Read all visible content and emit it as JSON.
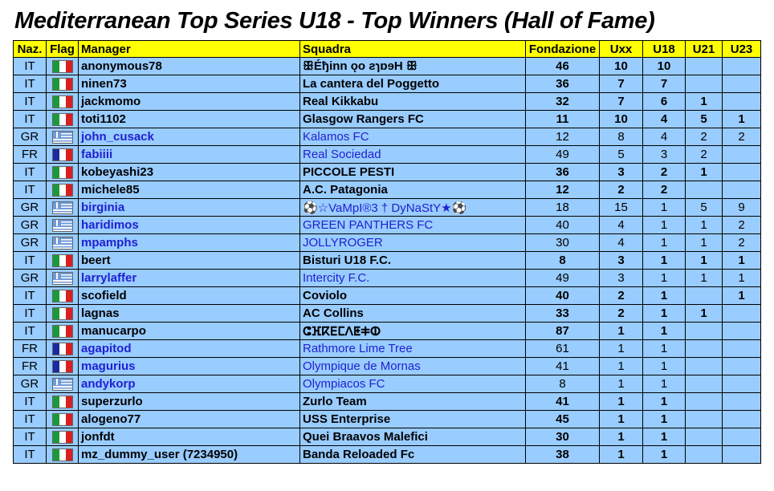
{
  "title": "Mediterranean Top Series U18 - Top Winners (Hall of Fame)",
  "headers": [
    "Naz.",
    "Flag",
    "Manager",
    "Squadra",
    "Fondazione",
    "Uxx",
    "U18",
    "U21",
    "U23"
  ],
  "rows": [
    {
      "naz": "IT",
      "flag": "flag-italy-icon",
      "manager": "anonymous78",
      "squadra": "ꕥÉђinn ǫo ƨɿɒɘH ꕥ",
      "fondazione": "46",
      "uxx": "10",
      "u18": "10",
      "u21": "",
      "u23": ""
    },
    {
      "naz": "IT",
      "flag": "flag-italy-icon",
      "manager": "ninen73",
      "squadra": "La cantera del Poggetto",
      "fondazione": "36",
      "uxx": "7",
      "u18": "7",
      "u21": "",
      "u23": ""
    },
    {
      "naz": "IT",
      "flag": "flag-italy-icon",
      "manager": "jackmomo",
      "squadra": "Real Kikkabu",
      "fondazione": "32",
      "uxx": "7",
      "u18": "6",
      "u21": "1",
      "u23": ""
    },
    {
      "naz": "IT",
      "flag": "flag-italy-icon",
      "manager": "toti1102",
      "squadra": "Glasgow Rangers FC",
      "fondazione": "11",
      "uxx": "10",
      "u18": "4",
      "u21": "5",
      "u23": "1"
    },
    {
      "naz": "GR",
      "flag": "flag-greece-icon",
      "manager": "john_cusack",
      "squadra": "Kalamos FC",
      "fondazione": "12",
      "uxx": "8",
      "u18": "4",
      "u21": "2",
      "u23": "2"
    },
    {
      "naz": "FR",
      "flag": "flag-france-icon",
      "manager": "fabiiii",
      "squadra": "Real Sociedad",
      "fondazione": "49",
      "uxx": "5",
      "u18": "3",
      "u21": "2",
      "u23": ""
    },
    {
      "naz": "IT",
      "flag": "flag-italy-icon",
      "manager": "kobeyashi23",
      "squadra": "PICCOLE PESTI",
      "fondazione": "36",
      "uxx": "3",
      "u18": "2",
      "u21": "1",
      "u23": ""
    },
    {
      "naz": "IT",
      "flag": "flag-italy-icon",
      "manager": "michele85",
      "squadra": "A.C. Patagonia",
      "fondazione": "12",
      "uxx": "2",
      "u18": "2",
      "u21": "",
      "u23": ""
    },
    {
      "naz": "GR",
      "flag": "flag-greece-icon",
      "manager": "birginia",
      "squadra": "⚽☆VaMpI®3 † DyNaStY★⚽",
      "fondazione": "18",
      "uxx": "15",
      "u18": "1",
      "u21": "5",
      "u23": "9"
    },
    {
      "naz": "GR",
      "flag": "flag-greece-icon",
      "manager": "haridimos",
      "squadra": "GREEN PANTHERS FC",
      "fondazione": "40",
      "uxx": "4",
      "u18": "1",
      "u21": "1",
      "u23": "2"
    },
    {
      "naz": "GR",
      "flag": "flag-greece-icon",
      "manager": "mpamphs",
      "squadra": "JOLLYROGER",
      "fondazione": "30",
      "uxx": "4",
      "u18": "1",
      "u21": "1",
      "u23": "2"
    },
    {
      "naz": "IT",
      "flag": "flag-italy-icon",
      "manager": "beert",
      "squadra": "Bisturi U18 F.C.",
      "fondazione": "8",
      "uxx": "3",
      "u18": "1",
      "u21": "1",
      "u23": "1"
    },
    {
      "naz": "GR",
      "flag": "flag-greece-icon",
      "manager": "larrylaffer",
      "squadra": "Intercity F.C.",
      "fondazione": "49",
      "uxx": "3",
      "u18": "1",
      "u21": "1",
      "u23": "1"
    },
    {
      "naz": "IT",
      "flag": "flag-italy-icon",
      "manager": "scofield",
      "squadra": "Coviolo",
      "fondazione": "40",
      "uxx": "2",
      "u18": "1",
      "u21": "",
      "u23": "1"
    },
    {
      "naz": "IT",
      "flag": "flag-italy-icon",
      "manager": "lagnas",
      "squadra": "AC Collins",
      "fondazione": "33",
      "uxx": "2",
      "u18": "1",
      "u21": "1",
      "u23": ""
    },
    {
      "naz": "IT",
      "flag": "flag-italy-icon",
      "manager": "manucarpo",
      "squadra": "ⵛⴼⴽⴹⵎⴷⵟⵐⵀ",
      "fondazione": "87",
      "uxx": "1",
      "u18": "1",
      "u21": "",
      "u23": ""
    },
    {
      "naz": "FR",
      "flag": "flag-france-icon",
      "manager": "agapitod",
      "squadra": "Rathmore Lime Tree",
      "fondazione": "61",
      "uxx": "1",
      "u18": "1",
      "u21": "",
      "u23": ""
    },
    {
      "naz": "FR",
      "flag": "flag-france-icon",
      "manager": "magurius",
      "squadra": "Olympique de Mornas",
      "fondazione": "41",
      "uxx": "1",
      "u18": "1",
      "u21": "",
      "u23": ""
    },
    {
      "naz": "GR",
      "flag": "flag-greece-icon",
      "manager": "andykorp",
      "squadra": "Olympiacos FC",
      "fondazione": "8",
      "uxx": "1",
      "u18": "1",
      "u21": "",
      "u23": ""
    },
    {
      "naz": "IT",
      "flag": "flag-italy-icon",
      "manager": "superzurlo",
      "squadra": "Zurlo Team",
      "fondazione": "41",
      "uxx": "1",
      "u18": "1",
      "u21": "",
      "u23": ""
    },
    {
      "naz": "IT",
      "flag": "flag-italy-icon",
      "manager": "alogeno77",
      "squadra": "USS Enterprise",
      "fondazione": "45",
      "uxx": "1",
      "u18": "1",
      "u21": "",
      "u23": ""
    },
    {
      "naz": "IT",
      "flag": "flag-italy-icon",
      "manager": "jonfdt",
      "squadra": "Quei Braavos Malefici",
      "fondazione": "30",
      "uxx": "1",
      "u18": "1",
      "u21": "",
      "u23": ""
    },
    {
      "naz": "IT",
      "flag": "flag-italy-icon",
      "manager": "mz_dummy_user (7234950)",
      "squadra": "Banda Reloaded Fc",
      "fondazione": "38",
      "uxx": "1",
      "u18": "1",
      "u21": "",
      "u23": ""
    }
  ]
}
